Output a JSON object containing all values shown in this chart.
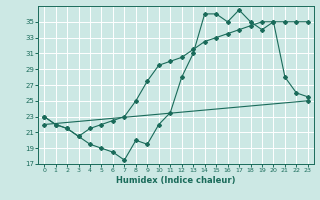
{
  "xlabel": "Humidex (Indice chaleur)",
  "bg_color": "#cce8e4",
  "line_color": "#1a6b5a",
  "grid_color": "#ffffff",
  "xlim": [
    -0.5,
    23.5
  ],
  "ylim": [
    17,
    37
  ],
  "yticks": [
    17,
    19,
    21,
    23,
    25,
    27,
    29,
    31,
    33,
    35
  ],
  "xticks": [
    0,
    1,
    2,
    3,
    4,
    5,
    6,
    7,
    8,
    9,
    10,
    11,
    12,
    13,
    14,
    15,
    16,
    17,
    18,
    19,
    20,
    21,
    22,
    23
  ],
  "curve1_x": [
    0,
    1,
    2,
    3,
    4,
    5,
    6,
    7,
    8,
    9,
    10,
    11,
    12,
    13,
    14,
    15,
    16,
    17,
    18,
    19,
    20,
    21,
    22,
    23
  ],
  "curve1_y": [
    23.0,
    22.0,
    21.5,
    20.5,
    19.5,
    19.0,
    18.5,
    17.5,
    20.0,
    19.5,
    22.0,
    23.5,
    28.0,
    31.0,
    36.0,
    36.0,
    35.0,
    36.5,
    35.0,
    34.0,
    35.0,
    28.0,
    26.0,
    25.5
  ],
  "curve2_x": [
    0,
    1,
    2,
    3,
    4,
    5,
    6,
    7,
    8,
    9,
    10,
    11,
    12,
    13,
    14,
    15,
    16,
    17,
    18,
    19,
    20,
    21,
    22,
    23
  ],
  "curve2_y": [
    23.0,
    22.0,
    21.5,
    20.5,
    21.5,
    22.0,
    22.5,
    23.0,
    25.0,
    27.5,
    29.5,
    30.0,
    30.5,
    31.5,
    32.5,
    33.0,
    33.5,
    34.0,
    34.5,
    35.0,
    35.0,
    35.0,
    35.0,
    35.0
  ],
  "line3_x": [
    0,
    23
  ],
  "line3_y": [
    22.0,
    25.0
  ]
}
